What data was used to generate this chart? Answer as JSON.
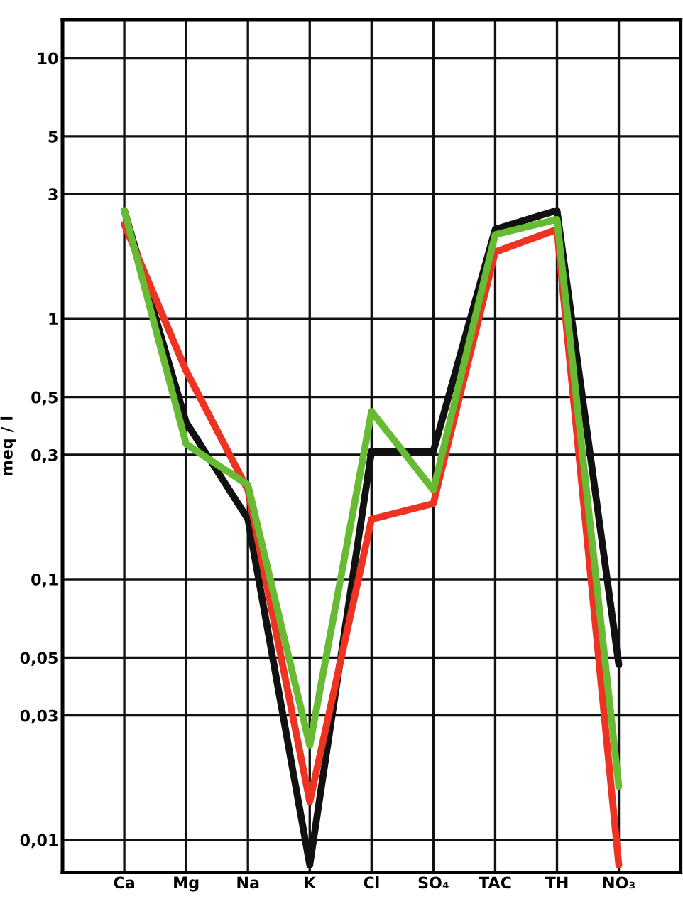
{
  "chart_data": {
    "type": "line",
    "ylabel": "meq / l",
    "categories": [
      "Ca",
      "Mg",
      "Na",
      "K",
      "Cl",
      "SO₄",
      "TAC",
      "TH",
      "NO₃"
    ],
    "series": [
      {
        "color": "#111111",
        "values": [
          2.6,
          0.4,
          0.17,
          0.008,
          0.31,
          0.31,
          2.2,
          2.6,
          0.047
        ]
      },
      {
        "color": "#ee3322",
        "values": [
          2.3,
          0.63,
          0.22,
          0.014,
          0.17,
          0.195,
          1.8,
          2.2,
          0.008
        ]
      },
      {
        "color": "#66bb33",
        "values": [
          2.6,
          0.33,
          0.23,
          0.023,
          0.44,
          0.22,
          2.1,
          2.4,
          0.016
        ]
      }
    ],
    "log": "y",
    "ylim": [
      0.0075,
      14
    ],
    "yticks": [
      {
        "value": 0.01,
        "label": "0,01"
      },
      {
        "value": 0.03,
        "label": "0,03"
      },
      {
        "value": 0.05,
        "label": "0,05"
      },
      {
        "value": 0.1,
        "label": "0,1"
      },
      {
        "value": 0.3,
        "label": "0,3"
      },
      {
        "value": 0.5,
        "label": "0,5"
      },
      1,
      3,
      5,
      10
    ],
    "grid": true,
    "marker": "none",
    "line_style": "solid"
  }
}
